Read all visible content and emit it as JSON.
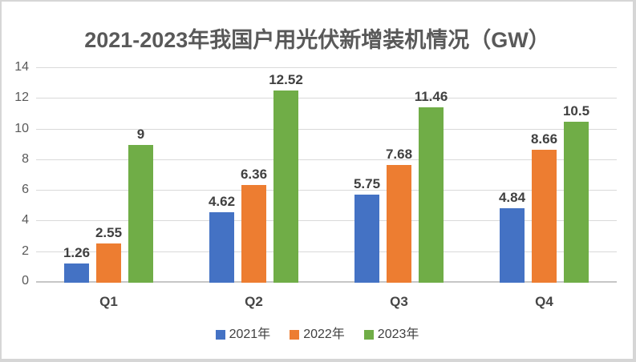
{
  "chart_data": {
    "type": "bar",
    "title": "2021-2023年我国户用光伏新增装机情况（GW）",
    "categories": [
      "Q1",
      "Q2",
      "Q3",
      "Q4"
    ],
    "series": [
      {
        "name": "2021年",
        "color": "#4472C4",
        "values": [
          1.26,
          4.62,
          5.75,
          4.84
        ],
        "labels": [
          "1.26",
          "4.62",
          "5.75",
          "4.84"
        ]
      },
      {
        "name": "2022年",
        "color": "#ED7D31",
        "values": [
          2.55,
          6.36,
          7.68,
          8.66
        ],
        "labels": [
          "2.55",
          "6.36",
          "7.68",
          "8.66"
        ]
      },
      {
        "name": "2023年",
        "color": "#70AD47",
        "values": [
          9,
          12.52,
          11.46,
          10.5
        ],
        "labels": [
          "9",
          "12.52",
          "11.46",
          "10.5"
        ]
      }
    ],
    "ylim": [
      0,
      14
    ],
    "ytick_step": 2,
    "yticks": [
      "0",
      "2",
      "4",
      "6",
      "8",
      "10",
      "12",
      "14"
    ],
    "grid": true,
    "legend_position": "bottom"
  },
  "colors": {
    "gridline": "#d9d9d9",
    "baseline": "#c6c6c6",
    "title_text": "#595959",
    "axis_text": "#595959",
    "data_label_text": "#404040",
    "frame_border": "#d6d6d6",
    "background": "#ffffff"
  }
}
